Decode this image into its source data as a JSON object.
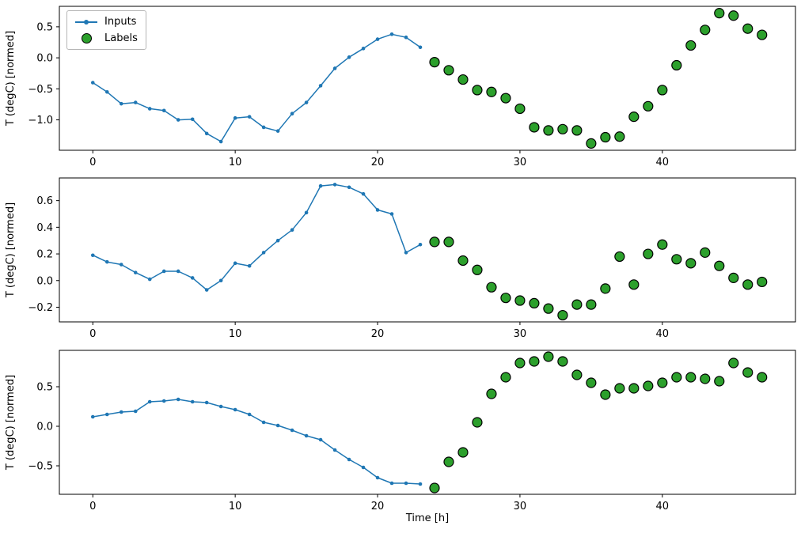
{
  "figure": {
    "background": "#ffffff",
    "xlabel": "Time [h]",
    "legend": {
      "position": "upper-left-subplot-1",
      "items": [
        {
          "label": "Inputs",
          "marker": "line-with-dot",
          "color": "#1f77b4"
        },
        {
          "label": "Labels",
          "marker": "circle",
          "color": "#2ca02c",
          "edge": "#000000"
        }
      ]
    }
  },
  "chart_data": [
    {
      "type": "line",
      "title": "",
      "xlabel": "",
      "ylabel": "T (degC) [normed]",
      "xlim": [
        -2.35,
        49.35
      ],
      "ylim": [
        -1.49,
        0.83
      ],
      "xticks": [
        0,
        10,
        20,
        30,
        40
      ],
      "yticks": [
        -1.0,
        -0.5,
        0.0,
        0.5
      ],
      "series": [
        {
          "name": "Inputs",
          "type": "line+marker",
          "color": "#1f77b4",
          "x": [
            0,
            1,
            2,
            3,
            4,
            5,
            6,
            7,
            8,
            9,
            10,
            11,
            12,
            13,
            14,
            15,
            16,
            17,
            18,
            19,
            20,
            21,
            22,
            23
          ],
          "y": [
            -0.4,
            -0.55,
            -0.74,
            -0.72,
            -0.82,
            -0.85,
            -1.0,
            -0.99,
            -1.22,
            -1.35,
            -0.97,
            -0.95,
            -1.12,
            -1.18,
            -0.9,
            -0.72,
            -0.45,
            -0.17,
            0.01,
            0.15,
            0.3,
            0.38,
            0.33,
            0.17
          ]
        },
        {
          "name": "Labels",
          "type": "scatter",
          "color": "#2ca02c",
          "edge": "#000000",
          "x": [
            24,
            25,
            26,
            27,
            28,
            29,
            30,
            31,
            32,
            33,
            34,
            35,
            36,
            37,
            38,
            39,
            40,
            41,
            42,
            43,
            44,
            45,
            46,
            47
          ],
          "y": [
            -0.07,
            -0.2,
            -0.35,
            -0.52,
            -0.55,
            -0.65,
            -0.82,
            -1.12,
            -1.17,
            -1.15,
            -1.17,
            -1.38,
            -1.28,
            -1.27,
            -0.95,
            -0.78,
            -0.52,
            -0.12,
            0.2,
            0.45,
            0.72,
            0.68,
            0.47,
            0.37
          ]
        }
      ]
    },
    {
      "type": "line",
      "title": "",
      "xlabel": "",
      "ylabel": "T (degC) [normed]",
      "xlim": [
        -2.35,
        49.35
      ],
      "ylim": [
        -0.31,
        0.77
      ],
      "xticks": [
        0,
        10,
        20,
        30,
        40
      ],
      "yticks": [
        -0.2,
        0.0,
        0.2,
        0.4,
        0.6
      ],
      "series": [
        {
          "name": "Inputs",
          "type": "line+marker",
          "color": "#1f77b4",
          "x": [
            0,
            1,
            2,
            3,
            4,
            5,
            6,
            7,
            8,
            9,
            10,
            11,
            12,
            13,
            14,
            15,
            16,
            17,
            18,
            19,
            20,
            21,
            22,
            23
          ],
          "y": [
            0.19,
            0.14,
            0.12,
            0.06,
            0.01,
            0.07,
            0.07,
            0.02,
            -0.07,
            0.0,
            0.13,
            0.11,
            0.21,
            0.3,
            0.38,
            0.51,
            0.71,
            0.72,
            0.7,
            0.65,
            0.53,
            0.5,
            0.21,
            0.27
          ]
        },
        {
          "name": "Labels",
          "type": "scatter",
          "color": "#2ca02c",
          "edge": "#000000",
          "x": [
            24,
            25,
            26,
            27,
            28,
            29,
            30,
            31,
            32,
            33,
            34,
            35,
            36,
            37,
            38,
            39,
            40,
            41,
            42,
            43,
            44,
            45,
            46,
            47
          ],
          "y": [
            0.29,
            0.29,
            0.15,
            0.08,
            -0.05,
            -0.13,
            -0.15,
            -0.17,
            -0.21,
            -0.26,
            -0.18,
            -0.18,
            -0.06,
            0.18,
            -0.03,
            0.2,
            0.27,
            0.16,
            0.13,
            0.21,
            0.11,
            0.02,
            -0.03,
            -0.01
          ]
        }
      ]
    },
    {
      "type": "line",
      "title": "",
      "xlabel": "Time [h]",
      "ylabel": "T (degC) [normed]",
      "xlim": [
        -2.35,
        49.35
      ],
      "ylim": [
        -0.86,
        0.96
      ],
      "xticks": [
        0,
        10,
        20,
        30,
        40
      ],
      "yticks": [
        -0.5,
        0.0,
        0.5
      ],
      "series": [
        {
          "name": "Inputs",
          "type": "line+marker",
          "color": "#1f77b4",
          "x": [
            0,
            1,
            2,
            3,
            4,
            5,
            6,
            7,
            8,
            9,
            10,
            11,
            12,
            13,
            14,
            15,
            16,
            17,
            18,
            19,
            20,
            21,
            22,
            23
          ],
          "y": [
            0.12,
            0.15,
            0.18,
            0.19,
            0.31,
            0.32,
            0.34,
            0.31,
            0.3,
            0.25,
            0.21,
            0.15,
            0.05,
            0.01,
            -0.05,
            -0.12,
            -0.17,
            -0.3,
            -0.42,
            -0.52,
            -0.65,
            -0.72,
            -0.72,
            -0.73
          ]
        },
        {
          "name": "Labels",
          "type": "scatter",
          "color": "#2ca02c",
          "edge": "#000000",
          "x": [
            24,
            25,
            26,
            27,
            28,
            29,
            30,
            31,
            32,
            33,
            34,
            35,
            36,
            37,
            38,
            39,
            40,
            41,
            42,
            43,
            44,
            45,
            46,
            47
          ],
          "y": [
            -0.78,
            -0.45,
            -0.33,
            0.05,
            0.41,
            0.62,
            0.8,
            0.82,
            0.88,
            0.82,
            0.65,
            0.55,
            0.4,
            0.48,
            0.48,
            0.51,
            0.55,
            0.62,
            0.62,
            0.6,
            0.57,
            0.8,
            0.68,
            0.62
          ]
        }
      ]
    }
  ]
}
